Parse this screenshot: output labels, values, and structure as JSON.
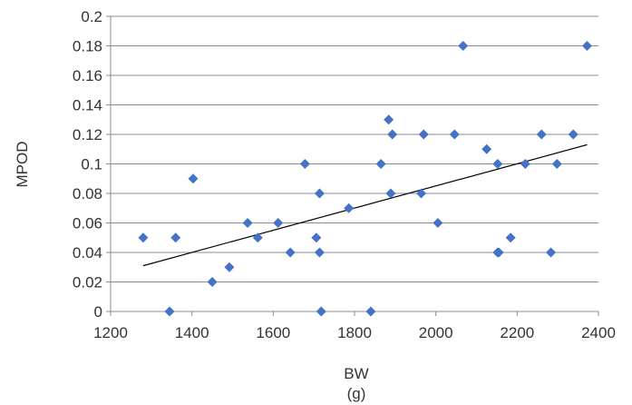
{
  "chart_data": {
    "type": "scatter",
    "xlabel_line1": "BW",
    "xlabel_line2": "(g)",
    "ylabel": "MPOD",
    "xlim": [
      1200,
      2400
    ],
    "ylim": [
      0,
      0.2
    ],
    "x_ticks": [
      "1200",
      "1400",
      "1600",
      "1800",
      "2000",
      "2200",
      "2400"
    ],
    "y_ticks": [
      "0",
      "0.02",
      "0.04",
      "0.06",
      "0.08",
      "0.1",
      "0.12",
      "0.14",
      "0.16",
      "0.18",
      "0.2"
    ],
    "grid": "horizontal",
    "marker": "diamond",
    "point_color": "#4472C4",
    "trendline_color": "#000000",
    "points": [
      {
        "x": 1280,
        "y": 0.05
      },
      {
        "x": 1345,
        "y": 0.0
      },
      {
        "x": 1360,
        "y": 0.05
      },
      {
        "x": 1403,
        "y": 0.09
      },
      {
        "x": 1450,
        "y": 0.02
      },
      {
        "x": 1492,
        "y": 0.03
      },
      {
        "x": 1537,
        "y": 0.06
      },
      {
        "x": 1562,
        "y": 0.05
      },
      {
        "x": 1612,
        "y": 0.06
      },
      {
        "x": 1642,
        "y": 0.04
      },
      {
        "x": 1678,
        "y": 0.1
      },
      {
        "x": 1706,
        "y": 0.05
      },
      {
        "x": 1714,
        "y": 0.08
      },
      {
        "x": 1714,
        "y": 0.04
      },
      {
        "x": 1718,
        "y": 0.0
      },
      {
        "x": 1786,
        "y": 0.07
      },
      {
        "x": 1840,
        "y": 0.0
      },
      {
        "x": 1865,
        "y": 0.1
      },
      {
        "x": 1884,
        "y": 0.13
      },
      {
        "x": 1889,
        "y": 0.08
      },
      {
        "x": 1893,
        "y": 0.12
      },
      {
        "x": 1964,
        "y": 0.08
      },
      {
        "x": 1970,
        "y": 0.12
      },
      {
        "x": 2005,
        "y": 0.06
      },
      {
        "x": 2046,
        "y": 0.12
      },
      {
        "x": 2067,
        "y": 0.18
      },
      {
        "x": 2125,
        "y": 0.11
      },
      {
        "x": 2152,
        "y": 0.1
      },
      {
        "x": 2152,
        "y": 0.04
      },
      {
        "x": 2155,
        "y": 0.04
      },
      {
        "x": 2184,
        "y": 0.05
      },
      {
        "x": 2220,
        "y": 0.1
      },
      {
        "x": 2260,
        "y": 0.12
      },
      {
        "x": 2283,
        "y": 0.04
      },
      {
        "x": 2298,
        "y": 0.1
      },
      {
        "x": 2338,
        "y": 0.12
      },
      {
        "x": 2372,
        "y": 0.18
      }
    ],
    "trendline": {
      "x": [
        1280,
        2372
      ],
      "y": [
        0.031,
        0.113
      ]
    }
  }
}
